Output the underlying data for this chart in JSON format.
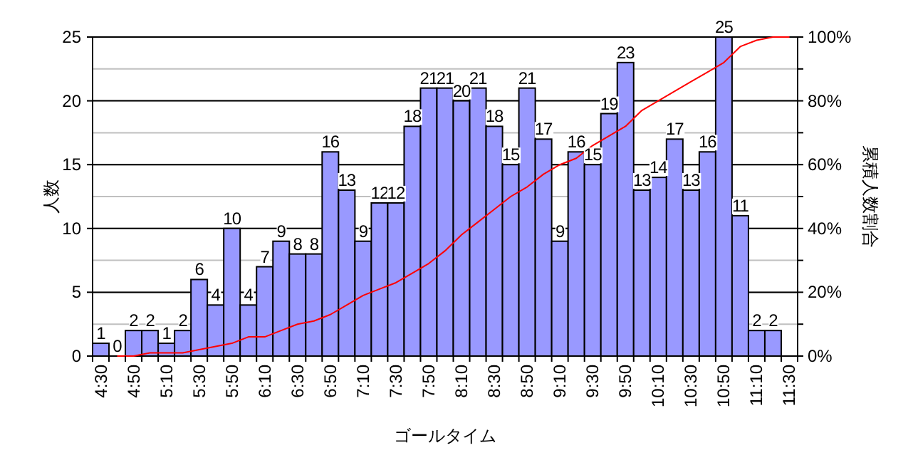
{
  "chart_data": {
    "type": "bar",
    "xlabel": "ゴールタイム",
    "ylabel": "人数",
    "y2label": "累積人数割合",
    "categories": [
      "4:30",
      null,
      "4:50",
      null,
      "5:10",
      null,
      "5:30",
      null,
      "5:50",
      null,
      "6:10",
      null,
      "6:30",
      null,
      "6:50",
      null,
      "7:10",
      null,
      "7:30",
      null,
      "7:50",
      null,
      "8:10",
      null,
      "8:30",
      null,
      "8:50",
      null,
      "9:10",
      null,
      "9:30",
      null,
      "9:50",
      null,
      "10:10",
      null,
      "10:30",
      null,
      "10:50",
      null,
      "11:10",
      null,
      "11:30"
    ],
    "series": [
      {
        "color": "#9999ff",
        "values": [
          1,
          0,
          2,
          2,
          1,
          2,
          6,
          4,
          10,
          4,
          7,
          9,
          8,
          8,
          16,
          13,
          9,
          12,
          12,
          18,
          21,
          21,
          20,
          21,
          18,
          15,
          21,
          17,
          9,
          16,
          15,
          19,
          23,
          13,
          14,
          17,
          13,
          16,
          25,
          11,
          2,
          2,
          null
        ],
        "value_labels": [
          "1",
          "0",
          "2",
          "2",
          "1",
          "2",
          "6",
          "4",
          "10",
          "4",
          "7",
          "9",
          "8",
          "8",
          "16",
          "13",
          "9",
          "12",
          "12",
          "18",
          "21",
          "21",
          "20",
          "21",
          "18",
          "15",
          "21",
          "17",
          "9",
          "16",
          "15",
          "19",
          "23",
          "13",
          "14",
          "17",
          "13",
          "16",
          "25",
          "11",
          "2",
          "2",
          null
        ]
      },
      {
        "type": "line",
        "axis": "y2",
        "color": "#ff0000",
        "values": [
          null,
          0,
          0,
          1,
          1,
          1,
          2,
          3,
          4,
          6,
          6,
          8,
          10,
          11,
          13,
          16,
          19,
          21,
          23,
          26,
          29,
          33,
          38,
          42,
          46,
          50,
          53,
          57,
          60,
          62,
          66,
          69,
          72,
          77,
          80,
          83,
          86,
          89,
          92,
          97,
          99,
          100,
          100
        ]
      }
    ],
    "grid": "y",
    "ylim": [
      0,
      25
    ],
    "yticks": [
      0,
      5,
      10,
      15,
      20,
      25
    ],
    "y2lim": [
      0,
      100
    ],
    "y2ticks": [
      {
        "value": 0,
        "label": "0%"
      },
      {
        "value": 10,
        "label": null
      },
      {
        "value": 20,
        "label": "20%"
      },
      {
        "value": 30,
        "label": null
      },
      {
        "value": 40,
        "label": "40%"
      },
      {
        "value": 50,
        "label": null
      },
      {
        "value": 60,
        "label": "60%"
      },
      {
        "value": 70,
        "label": null
      },
      {
        "value": 80,
        "label": "80%"
      },
      {
        "value": 90,
        "label": null
      },
      {
        "value": 100,
        "label": "100%"
      }
    ]
  }
}
